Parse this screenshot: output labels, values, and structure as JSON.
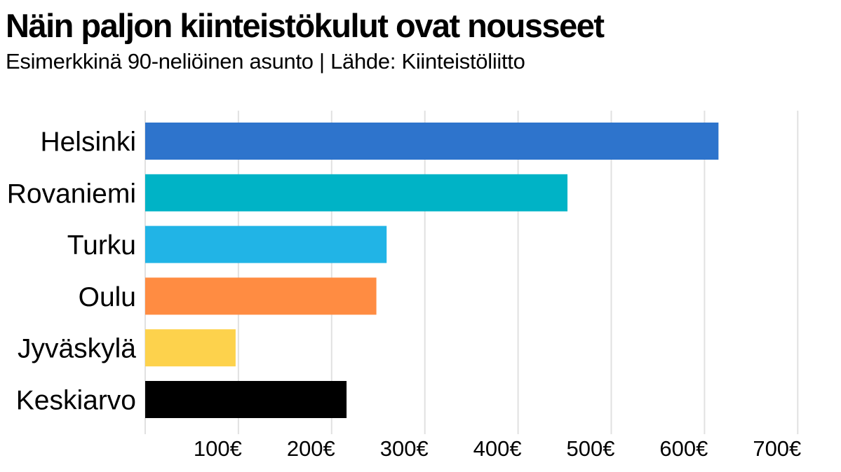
{
  "header": {
    "title": "Näin paljon kiinteistökulut ovat nousseet",
    "subtitle": "Esimerkkinä 90-neliöinen asunto | Lähde: Kiinteistöliitto"
  },
  "chart_data": {
    "type": "bar",
    "orientation": "horizontal",
    "title": "Näin paljon kiinteistökulut ovat nousseet",
    "subtitle": "Esimerkkinä 90-neliöinen asunto | Lähde: Kiinteistöliitto",
    "categories": [
      "Helsinki",
      "Rovaniemi",
      "Turku",
      "Oulu",
      "Jyväskylä",
      "Keskiarvo"
    ],
    "values": [
      615,
      453,
      259,
      248,
      97,
      216
    ],
    "colors": [
      "#2e74cc",
      "#00b3c6",
      "#21b4e6",
      "#ff8c42",
      "#fdd24c",
      "#000000"
    ],
    "xlim": [
      0,
      700
    ],
    "ticks": [
      100,
      200,
      300,
      400,
      500,
      600,
      700
    ],
    "tick_labels": [
      "100€",
      "200€",
      "300€",
      "400€",
      "500€",
      "600€",
      "700€"
    ],
    "grid": true,
    "legend": false
  }
}
